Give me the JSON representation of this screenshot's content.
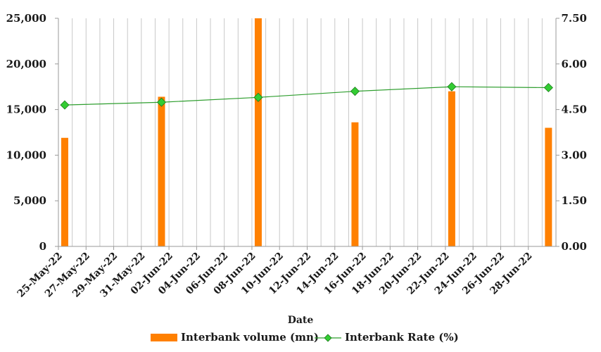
{
  "chart_data": {
    "type": "bar+line",
    "xlabel": "Date",
    "x_ticks": [
      "25-May-22",
      "27-May-22",
      "29-May-22",
      "31-May-22",
      "02-Jun-22",
      "04-Jun-22",
      "06-Jun-22",
      "08-Jun-22",
      "10-Jun-22",
      "12-Jun-22",
      "14-Jun-22",
      "16-Jun-22",
      "18-Jun-22",
      "20-Jun-22",
      "22-Jun-22",
      "24-Jun-22",
      "26-Jun-22",
      "28-Jun-22"
    ],
    "x_range": [
      "2022-05-25",
      "2022-06-30"
    ],
    "y_left": {
      "ticks": [
        "0",
        "5,000",
        "10,000",
        "15,000",
        "20,000",
        "25,000"
      ],
      "range": [
        0,
        25000
      ]
    },
    "y_right": {
      "ticks": [
        "0.00",
        "1.50",
        "3.00",
        "4.50",
        "6.00",
        "7.50"
      ],
      "range": [
        0,
        7.5
      ]
    },
    "grid": "vertical",
    "legend_position": "bottom",
    "series": [
      {
        "name": "Interbank volume (mn)",
        "kind": "bar",
        "axis": "left",
        "color": "#ff8000",
        "points": [
          {
            "date": "2022-05-25",
            "value": 11900
          },
          {
            "date": "2022-06-01",
            "value": 16400
          },
          {
            "date": "2022-06-08",
            "value": 25000
          },
          {
            "date": "2022-06-15",
            "value": 13600
          },
          {
            "date": "2022-06-22",
            "value": 17000
          },
          {
            "date": "2022-06-29",
            "value": 13000
          }
        ]
      },
      {
        "name": "Interbank Rate (%)",
        "kind": "line",
        "axis": "right",
        "color": "#2e9e2e",
        "marker_color": "#33cc33",
        "points": [
          {
            "date": "2022-05-25",
            "value": 4.65
          },
          {
            "date": "2022-06-01",
            "value": 4.74
          },
          {
            "date": "2022-06-08",
            "value": 4.9
          },
          {
            "date": "2022-06-15",
            "value": 5.1
          },
          {
            "date": "2022-06-22",
            "value": 5.25
          },
          {
            "date": "2022-06-29",
            "value": 5.22
          }
        ]
      }
    ]
  }
}
